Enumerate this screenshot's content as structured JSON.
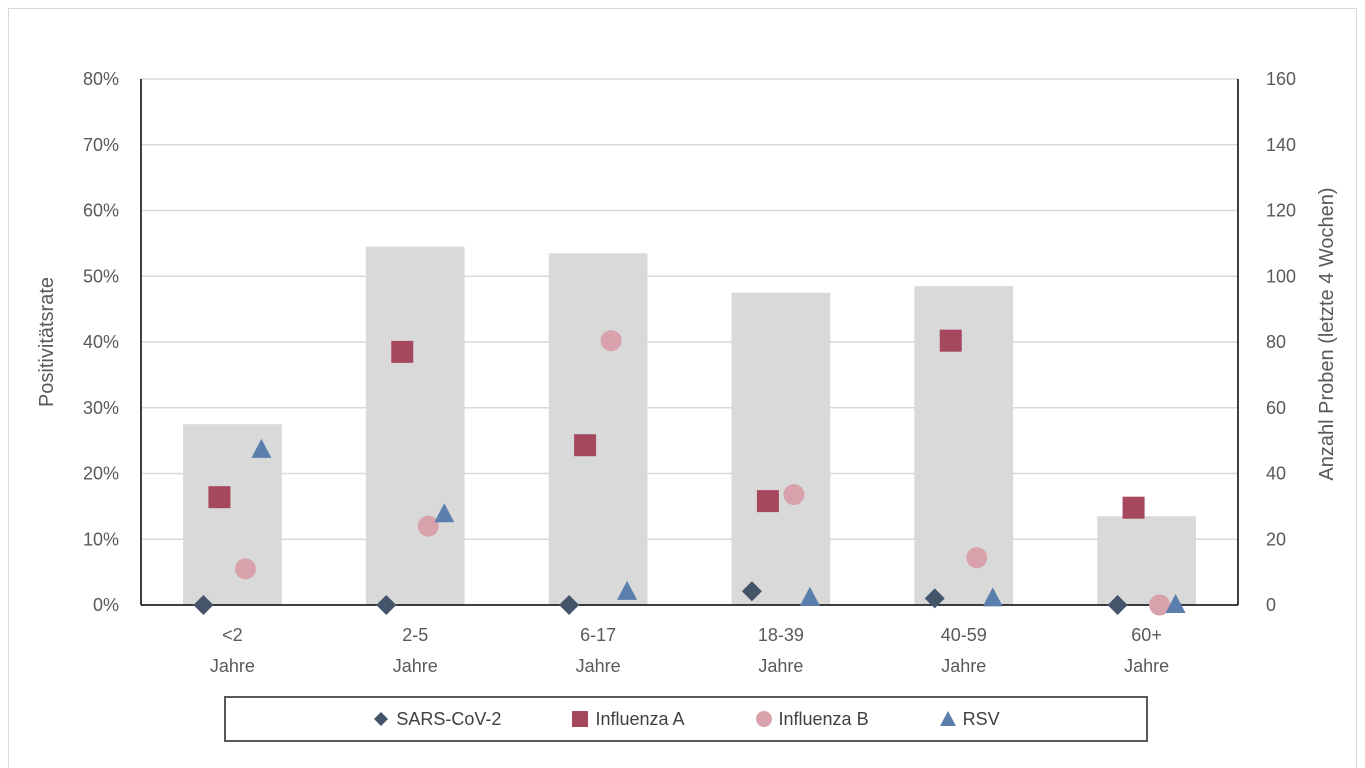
{
  "chart_data": {
    "type": "bar",
    "categories": [
      [
        "<2",
        "Jahre"
      ],
      [
        "2-5",
        "Jahre"
      ],
      [
        "6-17",
        "Jahre"
      ],
      [
        "18-39",
        "Jahre"
      ],
      [
        "40-59",
        "Jahre"
      ],
      [
        "60+",
        "Jahre"
      ]
    ],
    "bars": {
      "axis": "right",
      "color": "#d9d9d9",
      "values": [
        55,
        109,
        107,
        95,
        97,
        27
      ]
    },
    "series": [
      {
        "name": "SARS-CoV-2",
        "marker": "diamond",
        "color": "#44546a",
        "values": [
          0.0,
          0.0,
          0.0,
          2.1,
          1.0,
          0.0
        ]
      },
      {
        "name": "Influenza A",
        "marker": "square",
        "color": "#a5475d",
        "values": [
          16.4,
          38.5,
          24.3,
          15.8,
          40.2,
          14.8
        ]
      },
      {
        "name": "Influenza B",
        "marker": "circle",
        "color": "#d8a1ab",
        "values": [
          5.5,
          12.0,
          40.2,
          16.8,
          7.2,
          0.0
        ]
      },
      {
        "name": "RSV",
        "marker": "triangle",
        "color": "#5b7fad",
        "values": [
          23.6,
          13.8,
          2.0,
          1.1,
          1.0,
          0.0
        ]
      }
    ],
    "y_left": {
      "label": "Positivitätsrate",
      "ylim": [
        0,
        80
      ],
      "ticks": [
        "0%",
        "10%",
        "20%",
        "30%",
        "40%",
        "50%",
        "60%",
        "70%",
        "80%"
      ]
    },
    "y_right": {
      "label": "Anzahl Proben (letzte 4 Wochen)",
      "ylim": [
        0,
        160
      ],
      "ticks": [
        "0",
        "20",
        "40",
        "60",
        "80",
        "100",
        "120",
        "140",
        "160"
      ]
    },
    "grid": true,
    "legend_position": "bottom"
  }
}
